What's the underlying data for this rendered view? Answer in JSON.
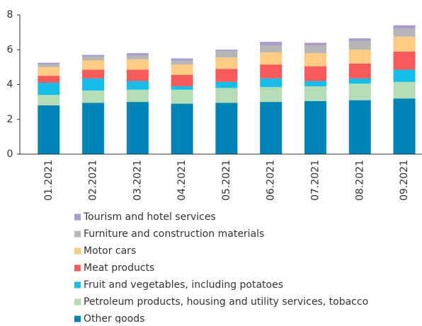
{
  "chart_data": {
    "type": "bar",
    "stacked": true,
    "categories": [
      "01.2021",
      "02.2021",
      "03.2021",
      "04.2021",
      "05.2021",
      "06.2021",
      "07.2021",
      "08.2021",
      "09.2021"
    ],
    "series": [
      {
        "name": "Other goods",
        "color": "#0083b5",
        "values": [
          2.8,
          2.95,
          3.0,
          2.9,
          2.95,
          3.0,
          3.05,
          3.1,
          3.2
        ]
      },
      {
        "name": "Petroleum products, housing and utility services, tobacco",
        "color": "#b5dcb5",
        "values": [
          0.6,
          0.7,
          0.7,
          0.8,
          0.85,
          0.85,
          0.85,
          0.95,
          0.95
        ]
      },
      {
        "name": "Fruit and vegetables, including potatoes",
        "color": "#16bde8",
        "values": [
          0.7,
          0.7,
          0.5,
          0.2,
          0.35,
          0.5,
          0.3,
          0.3,
          0.7
        ]
      },
      {
        "name": "Meat products",
        "color": "#f75a5a",
        "values": [
          0.4,
          0.5,
          0.65,
          0.65,
          0.75,
          0.8,
          0.85,
          0.85,
          1.05
        ]
      },
      {
        "name": "Motor cars",
        "color": "#fdcb83",
        "values": [
          0.5,
          0.55,
          0.6,
          0.6,
          0.65,
          0.7,
          0.75,
          0.8,
          0.85
        ]
      },
      {
        "name": "Furniture and construction materials",
        "color": "#b6b6b6",
        "values": [
          0.15,
          0.2,
          0.2,
          0.2,
          0.35,
          0.4,
          0.45,
          0.5,
          0.45
        ]
      },
      {
        "name": "Tourism and hotel services",
        "color": "#a99ccb",
        "values": [
          0.1,
          0.1,
          0.15,
          0.15,
          0.1,
          0.2,
          0.15,
          0.15,
          0.2
        ]
      }
    ],
    "ylim": [
      0,
      8
    ],
    "yticks": [
      0,
      2,
      4,
      6,
      8
    ],
    "grid": false,
    "legend": "bottom"
  }
}
